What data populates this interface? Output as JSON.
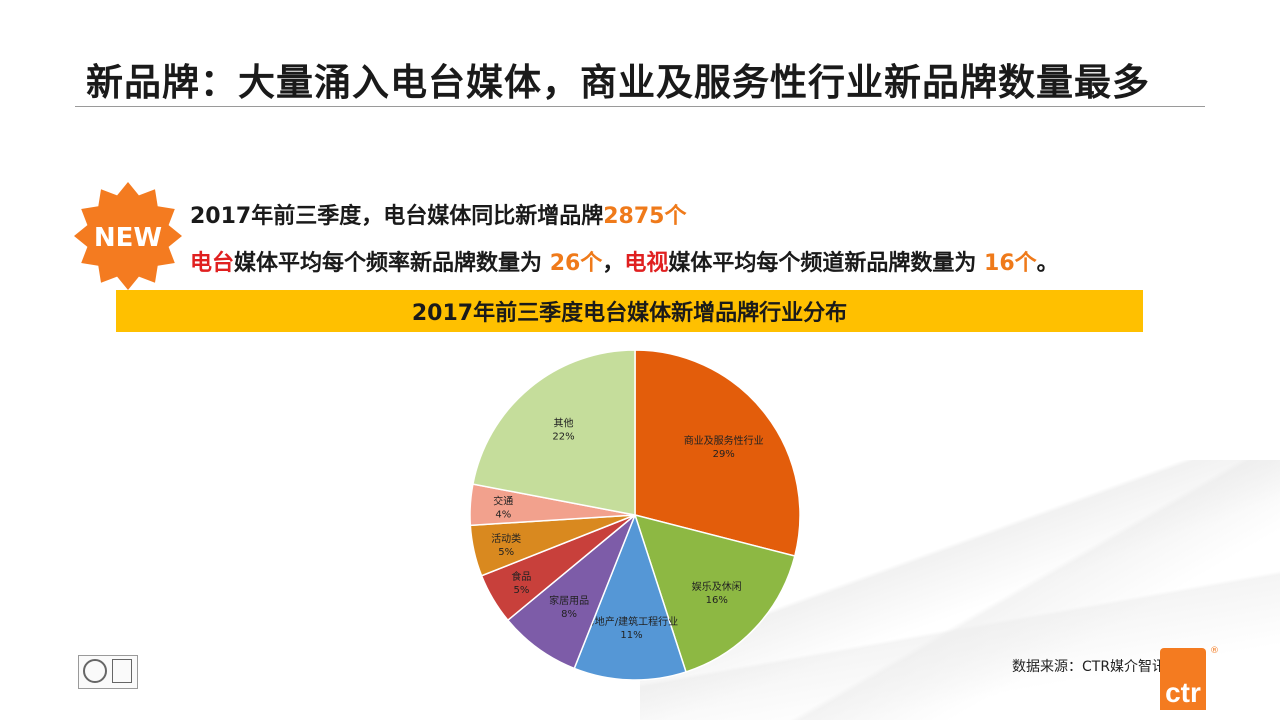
{
  "header": {
    "title": "新品牌：大量涌入电台媒体，商业及服务性行业新品牌数量最多"
  },
  "badge": {
    "text": "NEW"
  },
  "summary": {
    "line1_prefix": "2017年前三季度，电台媒体同比新增品牌",
    "line1_value": "2875个",
    "line2": {
      "radio_word": "电台",
      "radio_rest": "媒体平均每个频率新品牌数量为 ",
      "radio_value": "26个",
      "sep": "，",
      "tv_word": "电视",
      "tv_rest": "媒体平均每个频道新品牌数量为 ",
      "tv_value": "16个",
      "end": "。"
    }
  },
  "banner": {
    "title": "2017年前三季度电台媒体新增品牌行业分布"
  },
  "chart_data": {
    "type": "pie",
    "title": "2017年前三季度电台媒体新增品牌行业分布",
    "slices": [
      {
        "label": "商业及服务性行业",
        "value": 29,
        "display": "29%",
        "color": "#e35d0b"
      },
      {
        "label": "娱乐及休闲",
        "value": 16,
        "display": "16%",
        "color": "#8db843"
      },
      {
        "label": "房地产/建筑工程行业",
        "value": 11,
        "display": "11%",
        "color": "#5597d6"
      },
      {
        "label": "家居用品",
        "value": 8,
        "display": "8%",
        "color": "#7d5ca8"
      },
      {
        "label": "食品",
        "value": 5,
        "display": "5%",
        "color": "#c8403b"
      },
      {
        "label": "活动类",
        "value": 5,
        "display": "5%",
        "color": "#d9891f"
      },
      {
        "label": "交通",
        "value": 4,
        "display": "4%",
        "color": "#f2a18d"
      },
      {
        "label": "其他",
        "value": 22,
        "display": "22%",
        "color": "#c5dd9b"
      }
    ],
    "start_angle": "12 o'clock",
    "direction": "clockwise",
    "labels": "inside"
  },
  "footer": {
    "source": "数据来源：CTR媒介智讯",
    "logo_text": "ctr",
    "logo_mark": "®"
  },
  "colors": {
    "accent_orange": "#ef7a1a",
    "accent_red": "#e02020",
    "banner_yellow": "#ffc000",
    "badge_orange": "#f47b20"
  }
}
